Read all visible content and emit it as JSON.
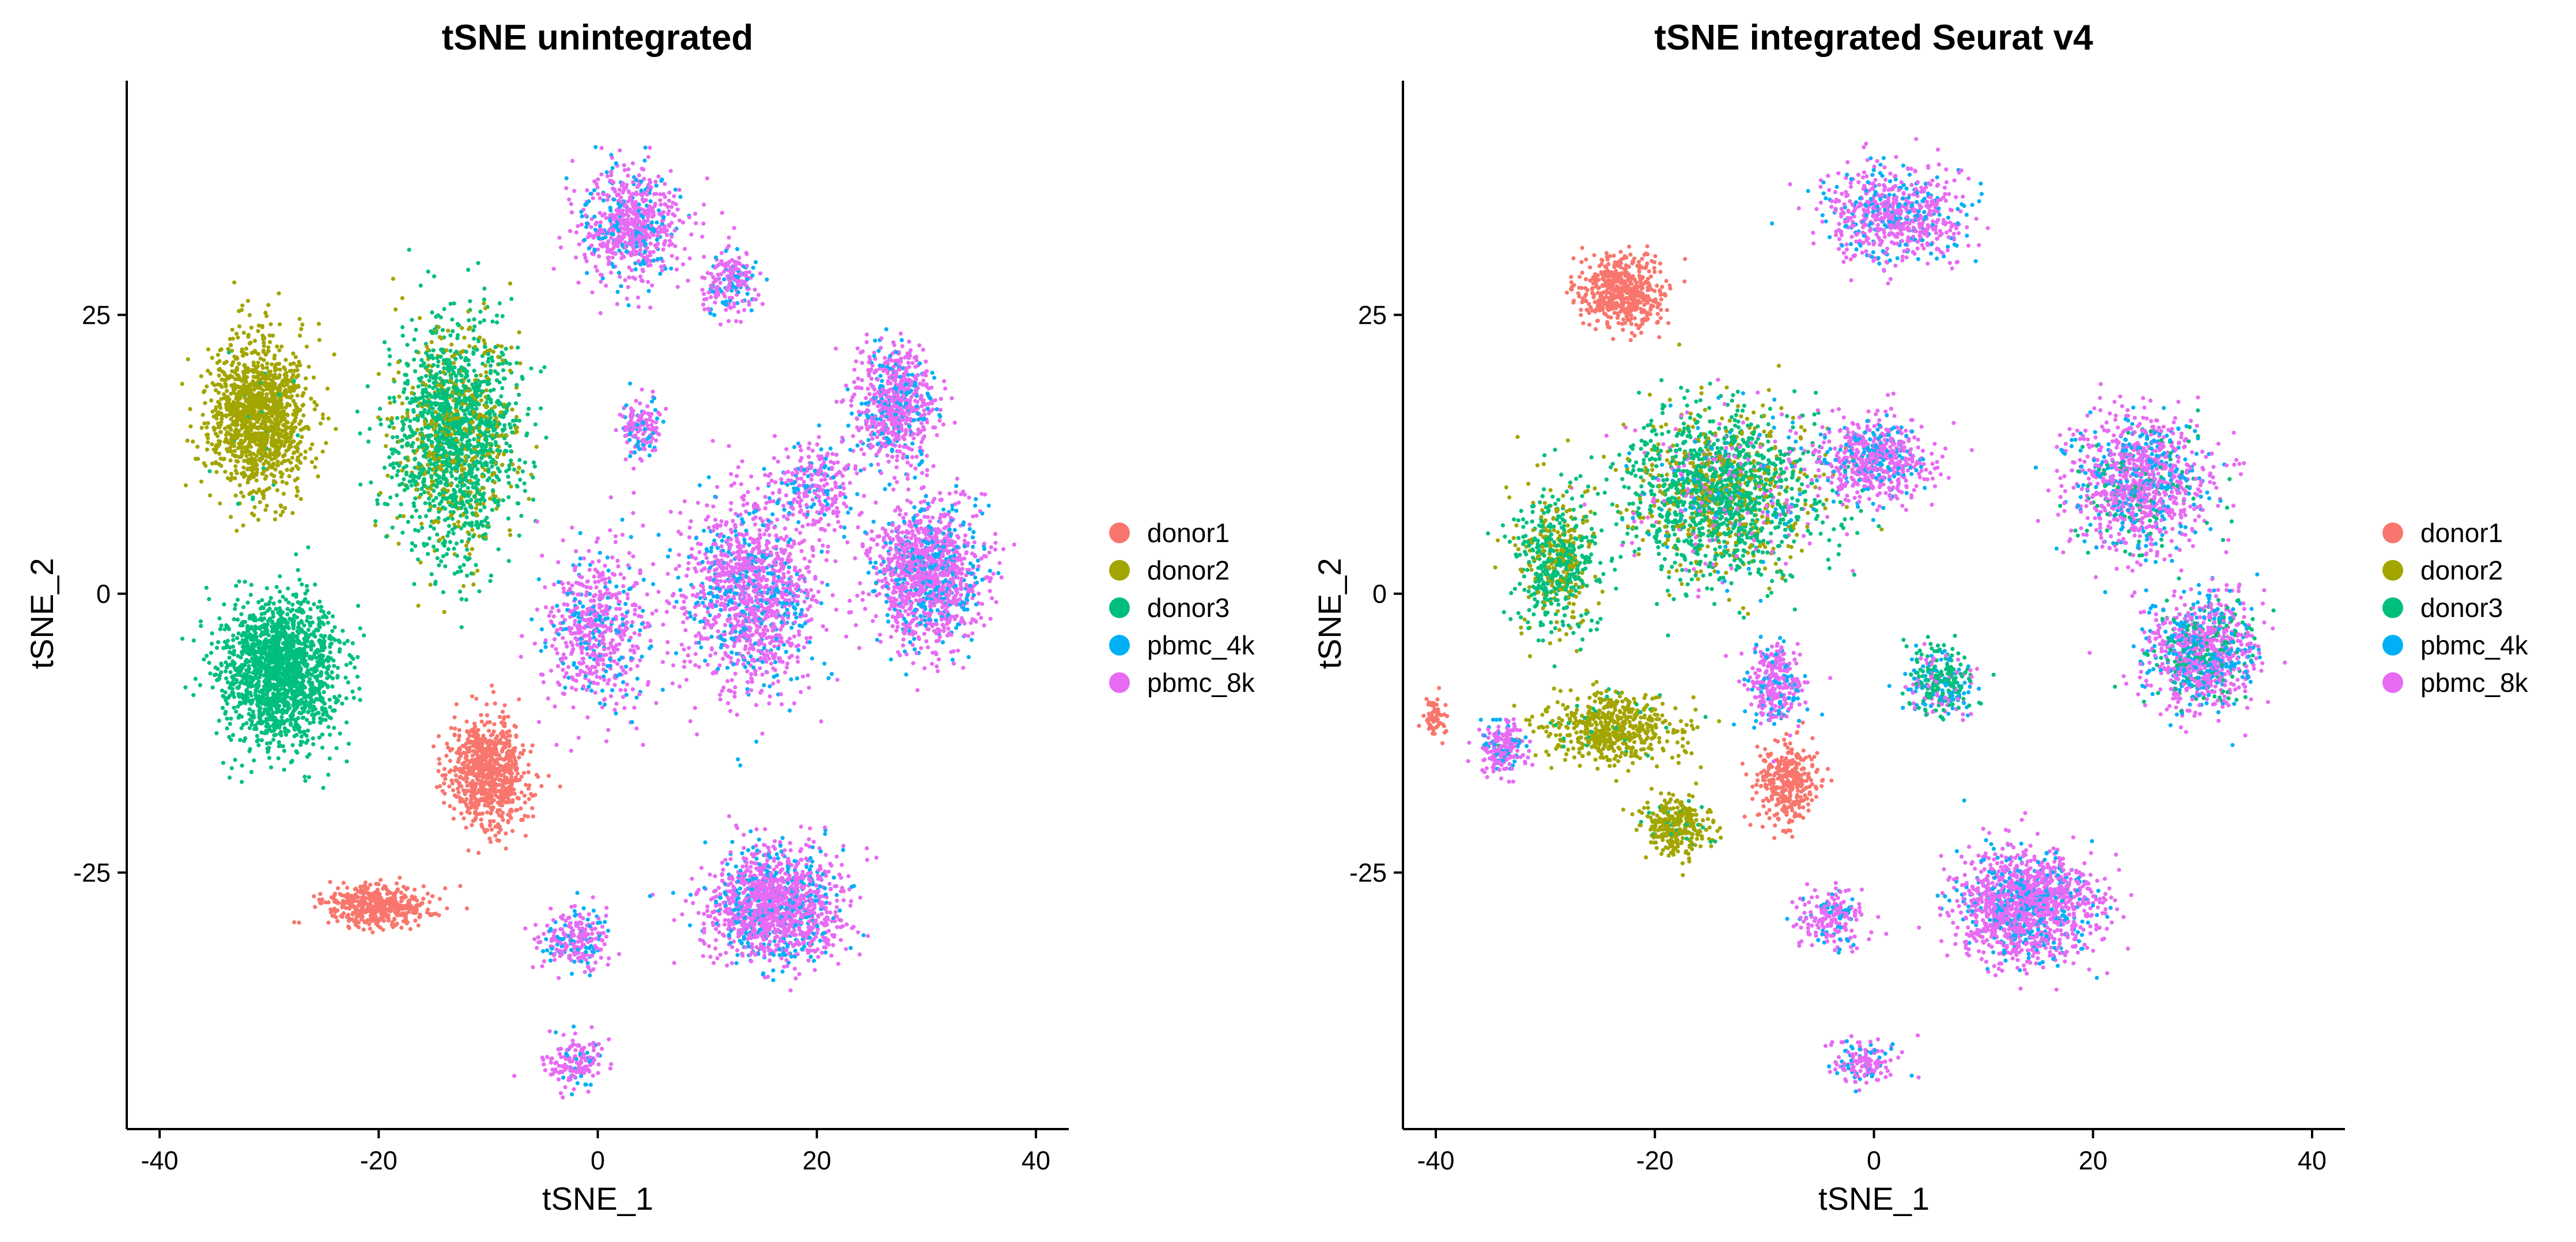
{
  "groups": [
    {
      "name": "donor1",
      "color": "#F8766D"
    },
    {
      "name": "donor2",
      "color": "#A3A500"
    },
    {
      "name": "donor3",
      "color": "#00BF7D"
    },
    {
      "name": "pbmc_4k",
      "color": "#00B0F6"
    },
    {
      "name": "pbmc_8k",
      "color": "#E76BF3"
    }
  ],
  "chart_data": [
    {
      "type": "scatter",
      "title": "tSNE unintegrated",
      "xlabel": "tSNE_1",
      "ylabel": "tSNE_2",
      "xlim": [
        -43,
        43
      ],
      "ylim": [
        -48,
        46
      ],
      "xticks": [
        -40,
        -20,
        0,
        20,
        40
      ],
      "yticks": [
        -25,
        0,
        25
      ],
      "grid": false,
      "legend": "right",
      "clusters": [
        {
          "group": "donor2",
          "cx": -31,
          "cy": 16,
          "sx": 3.6,
          "sy": 5.5,
          "n": 1300,
          "mix": {
            "donor3": 0.03
          }
        },
        {
          "group": "donor3",
          "cx": -13,
          "cy": 14,
          "sx": 4.5,
          "sy": 8,
          "n": 1800,
          "mix": {
            "donor2": 0.25
          }
        },
        {
          "group": "donor3",
          "cx": -29,
          "cy": -7,
          "sx": 4.2,
          "sy": 5.2,
          "n": 1700,
          "mix": {}
        },
        {
          "group": "donor1",
          "cx": -10,
          "cy": -16,
          "sx": 2.8,
          "sy": 3.8,
          "n": 800,
          "mix": {}
        },
        {
          "group": "donor1",
          "cx": -20,
          "cy": -28,
          "sx": 3.8,
          "sy": 1.5,
          "n": 450,
          "mix": {}
        },
        {
          "group": "pbmc_8k",
          "cx": 3,
          "cy": 33,
          "sx": 3.5,
          "sy": 4,
          "n": 700,
          "mix": {
            "pbmc_4k": 0.25
          }
        },
        {
          "group": "pbmc_8k",
          "cx": 12,
          "cy": 28,
          "sx": 2,
          "sy": 2.5,
          "n": 200,
          "mix": {
            "pbmc_4k": 0.25
          }
        },
        {
          "group": "pbmc_8k",
          "cx": 4,
          "cy": 15,
          "sx": 1.4,
          "sy": 2.2,
          "n": 150,
          "mix": {
            "pbmc_4k": 0.25
          }
        },
        {
          "group": "pbmc_8k",
          "cx": 27,
          "cy": 17,
          "sx": 3,
          "sy": 4,
          "n": 700,
          "mix": {
            "pbmc_4k": 0.25
          }
        },
        {
          "group": "pbmc_8k",
          "cx": 30,
          "cy": 2,
          "sx": 4,
          "sy": 5,
          "n": 1300,
          "mix": {
            "pbmc_4k": 0.25
          }
        },
        {
          "group": "pbmc_8k",
          "cx": 14,
          "cy": 0,
          "sx": 5,
          "sy": 7,
          "n": 1300,
          "mix": {
            "pbmc_4k": 0.25
          }
        },
        {
          "group": "pbmc_8k",
          "cx": 0,
          "cy": -3,
          "sx": 4,
          "sy": 6,
          "n": 600,
          "mix": {
            "pbmc_4k": 0.25
          }
        },
        {
          "group": "pbmc_8k",
          "cx": 16,
          "cy": -28,
          "sx": 5,
          "sy": 4,
          "n": 1400,
          "mix": {
            "pbmc_4k": 0.25
          }
        },
        {
          "group": "pbmc_8k",
          "cx": -2,
          "cy": -31,
          "sx": 2.5,
          "sy": 2,
          "n": 250,
          "mix": {
            "pbmc_4k": 0.25
          }
        },
        {
          "group": "pbmc_8k",
          "cx": -2,
          "cy": -42,
          "sx": 2.2,
          "sy": 1.8,
          "n": 150,
          "mix": {
            "pbmc_4k": 0.25
          }
        },
        {
          "group": "pbmc_8k",
          "cx": 20,
          "cy": 10,
          "sx": 3,
          "sy": 3,
          "n": 250,
          "mix": {
            "pbmc_4k": 0.25
          }
        }
      ]
    },
    {
      "type": "scatter",
      "title": "tSNE integrated Seurat v4",
      "xlabel": "tSNE_1",
      "ylabel": "tSNE_2",
      "xlim": [
        -43,
        43
      ],
      "ylim": [
        -48,
        46
      ],
      "xticks": [
        -40,
        -20,
        0,
        20,
        40
      ],
      "yticks": [
        -25,
        0,
        25
      ],
      "grid": false,
      "legend": "right",
      "clusters": [
        {
          "group": "pbmc_8k",
          "cx": 2,
          "cy": 34,
          "sx": 5,
          "sy": 3.5,
          "n": 700,
          "mix": {
            "pbmc_4k": 0.25
          }
        },
        {
          "group": "donor1",
          "cx": -23,
          "cy": 27,
          "sx": 3,
          "sy": 2.5,
          "n": 550,
          "mix": {}
        },
        {
          "group": "donor3",
          "cx": -14,
          "cy": 9,
          "sx": 7,
          "sy": 6,
          "n": 1800,
          "mix": {
            "donor2": 0.25,
            "pbmc_8k": 0.12,
            "pbmc_4k": 0.05
          }
        },
        {
          "group": "donor3",
          "cx": -29,
          "cy": 3,
          "sx": 3,
          "sy": 5,
          "n": 600,
          "mix": {
            "donor2": 0.35
          }
        },
        {
          "group": "donor2",
          "cx": -24,
          "cy": -12,
          "sx": 5,
          "sy": 2.5,
          "n": 550,
          "mix": {
            "donor3": 0.05
          }
        },
        {
          "group": "donor2",
          "cx": -18,
          "cy": -21,
          "sx": 2.5,
          "sy": 2.2,
          "n": 300,
          "mix": {
            "donor3": 0.1
          }
        },
        {
          "group": "donor1",
          "cx": -8,
          "cy": -17,
          "sx": 2.2,
          "sy": 3,
          "n": 350,
          "mix": {}
        },
        {
          "group": "donor1",
          "cx": -40,
          "cy": -11,
          "sx": 0.8,
          "sy": 1.5,
          "n": 60,
          "mix": {}
        },
        {
          "group": "pbmc_8k",
          "cx": 0,
          "cy": 12,
          "sx": 4,
          "sy": 3,
          "n": 600,
          "mix": {
            "pbmc_4k": 0.25
          }
        },
        {
          "group": "pbmc_8k",
          "cx": 24,
          "cy": 10,
          "sx": 5,
          "sy": 5,
          "n": 1100,
          "mix": {
            "pbmc_4k": 0.25,
            "donor3": 0.1
          }
        },
        {
          "group": "pbmc_8k",
          "cx": 30,
          "cy": -5,
          "sx": 4,
          "sy": 4,
          "n": 1000,
          "mix": {
            "pbmc_4k": 0.25,
            "donor3": 0.18
          }
        },
        {
          "group": "donor3",
          "cx": 6,
          "cy": -8,
          "sx": 2.5,
          "sy": 2.5,
          "n": 300,
          "mix": {
            "pbmc_4k": 0.25,
            "pbmc_8k": 0.2
          }
        },
        {
          "group": "pbmc_8k",
          "cx": 14,
          "cy": -28,
          "sx": 5,
          "sy": 4,
          "n": 1400,
          "mix": {
            "pbmc_4k": 0.25
          }
        },
        {
          "group": "pbmc_8k",
          "cx": -4,
          "cy": -29,
          "sx": 2.5,
          "sy": 2,
          "n": 200,
          "mix": {
            "pbmc_4k": 0.25
          }
        },
        {
          "group": "pbmc_8k",
          "cx": -1,
          "cy": -42,
          "sx": 2.5,
          "sy": 1.8,
          "n": 150,
          "mix": {
            "pbmc_4k": 0.25
          }
        },
        {
          "group": "pbmc_8k",
          "cx": -34,
          "cy": -14,
          "sx": 1.8,
          "sy": 2,
          "n": 200,
          "mix": {
            "pbmc_4k": 0.25
          }
        },
        {
          "group": "pbmc_8k",
          "cx": -9,
          "cy": -8,
          "sx": 2.2,
          "sy": 3,
          "n": 300,
          "mix": {
            "pbmc_4k": 0.25
          }
        }
      ]
    }
  ]
}
